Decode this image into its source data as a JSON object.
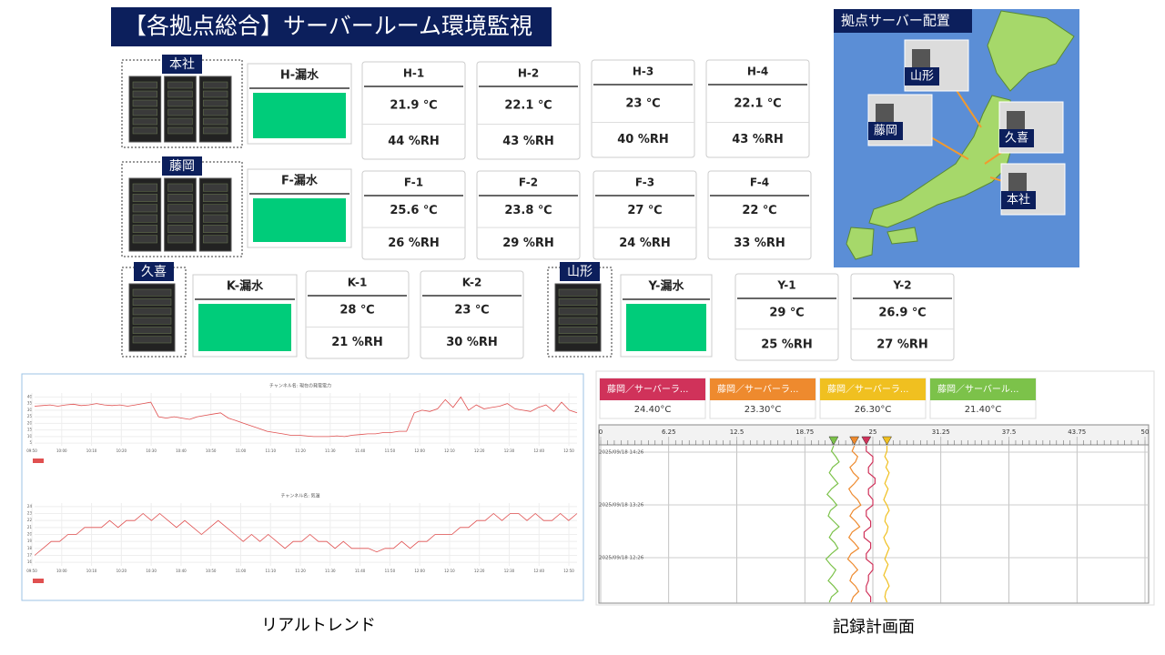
{
  "header": {
    "title": "【各拠点総合】サーバールーム環境監視"
  },
  "sites": [
    {
      "name": "本社",
      "leak": "H-漏水",
      "sensors": [
        {
          "name": "H-1",
          "temp": "21.9 ℃",
          "humidity": "44 %RH"
        },
        {
          "name": "H-2",
          "temp": "22.1 ℃",
          "humidity": "43 %RH"
        },
        {
          "name": "H-3",
          "temp": "23 ℃",
          "humidity": "40 %RH"
        },
        {
          "name": "H-4",
          "temp": "22.1 ℃",
          "humidity": "43 %RH"
        }
      ]
    },
    {
      "name": "藤岡",
      "leak": "F-漏水",
      "sensors": [
        {
          "name": "F-1",
          "temp": "25.6 ℃",
          "humidity": "26 %RH"
        },
        {
          "name": "F-2",
          "temp": "23.8 ℃",
          "humidity": "29 %RH"
        },
        {
          "name": "F-3",
          "temp": "27 ℃",
          "humidity": "24 %RH"
        },
        {
          "name": "F-4",
          "temp": "22 ℃",
          "humidity": "33 %RH"
        }
      ]
    },
    {
      "name": "久喜",
      "leak": "K-漏水",
      "sensors": [
        {
          "name": "K-1",
          "temp": "28 ℃",
          "humidity": "21 %RH"
        },
        {
          "name": "K-2",
          "temp": "23 ℃",
          "humidity": "30 %RH"
        }
      ]
    },
    {
      "name": "山形",
      "leak": "Y-漏水",
      "sensors": [
        {
          "name": "Y-1",
          "temp": "29 ℃",
          "humidity": "25 %RH"
        },
        {
          "name": "Y-2",
          "temp": "26.9 ℃",
          "humidity": "27 %RH"
        }
      ]
    }
  ],
  "map": {
    "title": "拠点サーバー配置",
    "labels": [
      "山形",
      "藤岡",
      "久喜",
      "本社"
    ]
  },
  "trend": {
    "caption": "リアルトレンド",
    "charts": [
      {
        "type": "line",
        "title": "チャンネル名: 現在の発電電力",
        "color": "#e05050",
        "ylim": [
          3,
          43
        ],
        "yticks": [
          5,
          10,
          15,
          20,
          25,
          30,
          35,
          40
        ],
        "xtick_labels": [
          "09:50",
          "10:00",
          "10:10",
          "10:20",
          "10:30",
          "10:40",
          "10:50",
          "11:00",
          "11:10",
          "11:20",
          "11:30",
          "11:40",
          "11:50",
          "12:00",
          "12:10",
          "12:20",
          "12:30",
          "12:40",
          "12:50"
        ],
        "values": [
          33,
          33.5,
          34,
          33,
          34,
          34.5,
          33.5,
          34,
          35,
          34,
          33.5,
          34,
          33,
          34,
          35,
          36,
          25,
          24,
          25,
          24,
          23,
          25,
          26,
          27,
          28,
          24,
          22,
          20,
          18,
          16,
          14,
          13,
          12,
          11,
          11,
          10.5,
          10,
          10,
          10,
          10.5,
          10,
          11,
          11.5,
          12,
          12,
          13,
          13,
          14,
          14,
          28,
          30,
          29,
          31,
          38,
          32,
          40,
          30,
          34,
          31,
          32,
          33,
          35,
          31,
          30,
          29,
          32,
          34,
          29,
          36,
          30,
          28
        ]
      },
      {
        "type": "line",
        "title": "チャンネル名: 気温",
        "color": "#e05050",
        "ylim": [
          15.5,
          24.5
        ],
        "yticks": [
          16,
          17,
          18,
          19,
          20,
          21,
          22,
          23,
          24
        ],
        "xtick_labels": [
          "09:50",
          "10:00",
          "10:10",
          "10:20",
          "10:30",
          "10:40",
          "10:50",
          "11:00",
          "11:10",
          "11:20",
          "11:30",
          "11:40",
          "11:50",
          "12:00",
          "12:10",
          "12:20",
          "12:30",
          "12:40",
          "12:50"
        ],
        "values": [
          17,
          18,
          19,
          19,
          20,
          20,
          21,
          21,
          21,
          22,
          21,
          22,
          22,
          23,
          22,
          23,
          22,
          21,
          22,
          21,
          20,
          21,
          22,
          21,
          20,
          19,
          20,
          19,
          20,
          19,
          18,
          19,
          19,
          20,
          19,
          19,
          18,
          19,
          18,
          18,
          18,
          17.5,
          18,
          18,
          19,
          18,
          19,
          19,
          20,
          20,
          20,
          21,
          21,
          22,
          22,
          23,
          22,
          23,
          23,
          22,
          23,
          22,
          22,
          23,
          22,
          23
        ]
      }
    ]
  },
  "recorder": {
    "caption": "記録計画面",
    "xlim": [
      0,
      50
    ],
    "xticks": [
      0,
      6.25,
      12.5,
      18.75,
      25,
      31.25,
      37.5,
      43.75,
      50
    ],
    "time_labels": [
      "2025/09/18 14:26",
      "2025/09/18 13:26",
      "2025/09/18 12:26"
    ],
    "series": [
      {
        "name": "藤岡／サーバーラ...",
        "color": "#d0325a",
        "value": 24.4,
        "value_label": "24.40°C",
        "values": [
          24.4,
          24.4,
          25.0,
          25.0,
          24.6,
          24.6,
          25.2,
          25.2,
          24.6,
          24.6,
          25.0,
          25.0,
          24.4,
          24.4,
          24.8,
          24.8,
          24.2,
          24.2,
          24.8,
          24.8,
          24.4,
          24.4,
          25.0,
          25.0,
          24.6,
          24.6,
          24.4,
          24.4,
          24.8,
          24.8
        ]
      },
      {
        "name": "藤岡／サーバーラ...",
        "color": "#ee8a2e",
        "value": 23.3,
        "value_label": "23.30°C",
        "values": [
          23.3,
          23.1,
          23.6,
          23.4,
          22.9,
          23.2,
          23.7,
          23.3,
          22.8,
          23.1,
          23.6,
          23.9,
          23.2,
          22.9,
          23.4,
          23.8,
          23.1,
          22.8,
          23.3,
          23.7,
          23.0,
          22.7,
          23.2,
          23.6,
          23.1,
          22.9,
          23.4,
          23.7,
          23.2,
          23.0
        ]
      },
      {
        "name": "藤岡／サーバーラ...",
        "color": "#f0c020",
        "value": 26.3,
        "value_label": "26.30°C",
        "values": [
          26.3,
          26.3,
          26.1,
          26.4,
          26.2,
          26.5,
          26.3,
          26.1,
          26.4,
          26.2,
          26.0,
          26.3,
          26.5,
          26.2,
          26.1,
          26.4,
          26.3,
          26.0,
          26.2,
          26.5,
          26.3,
          26.1,
          26.4,
          26.2,
          26.0,
          26.3,
          26.5,
          26.2,
          26.1,
          26.3
        ]
      },
      {
        "name": "藤岡／サーバール...",
        "color": "#7cc24a",
        "value": 21.4,
        "value_label": "21.40°C",
        "values": [
          21.4,
          21.2,
          21.6,
          21.9,
          21.3,
          21.0,
          21.4,
          21.8,
          21.2,
          20.8,
          21.3,
          21.7,
          21.1,
          20.9,
          21.4,
          21.9,
          21.3,
          21.0,
          21.5,
          21.8,
          21.2,
          20.7,
          21.1,
          21.6,
          21.3,
          20.9,
          21.4,
          21.8,
          21.2,
          21.0
        ]
      }
    ]
  }
}
